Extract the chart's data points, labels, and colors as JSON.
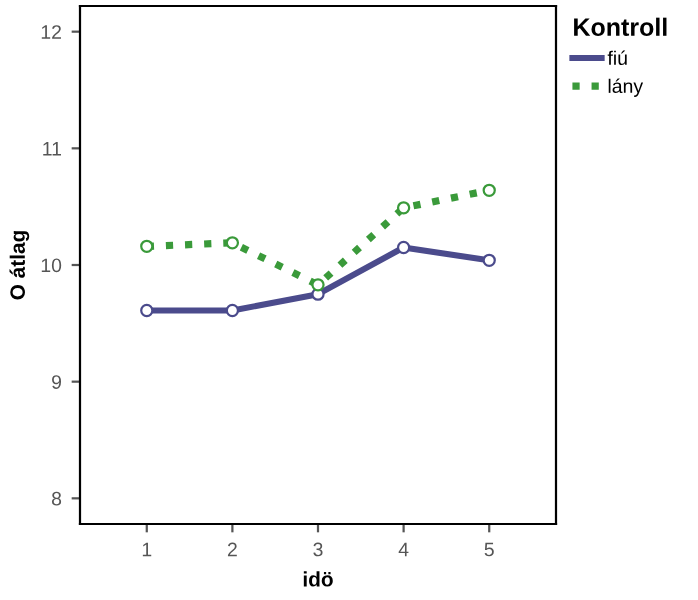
{
  "chart_data": {
    "type": "line",
    "xlabel": "idö",
    "ylabel": "O átlag",
    "legend_title": "Kontroll",
    "legend": "top right",
    "marker": "circle",
    "grid": false,
    "x": [
      1,
      2,
      3,
      4,
      5
    ],
    "xlim": [
      0.22,
      5.78
    ],
    "xticks": [
      1,
      2,
      3,
      4,
      5
    ],
    "ylim": [
      7.78,
      12.22
    ],
    "yticks": [
      8,
      9,
      10,
      11,
      12
    ],
    "series": [
      {
        "name": "fiú",
        "color": "#4b4b8c",
        "line_style": "solid",
        "values": [
          9.61,
          9.61,
          9.75,
          10.15,
          10.04
        ]
      },
      {
        "name": "lány",
        "color": "#3a9a3a",
        "line_style": "dotted",
        "values": [
          10.16,
          10.19,
          9.83,
          10.49,
          10.64
        ]
      }
    ]
  }
}
